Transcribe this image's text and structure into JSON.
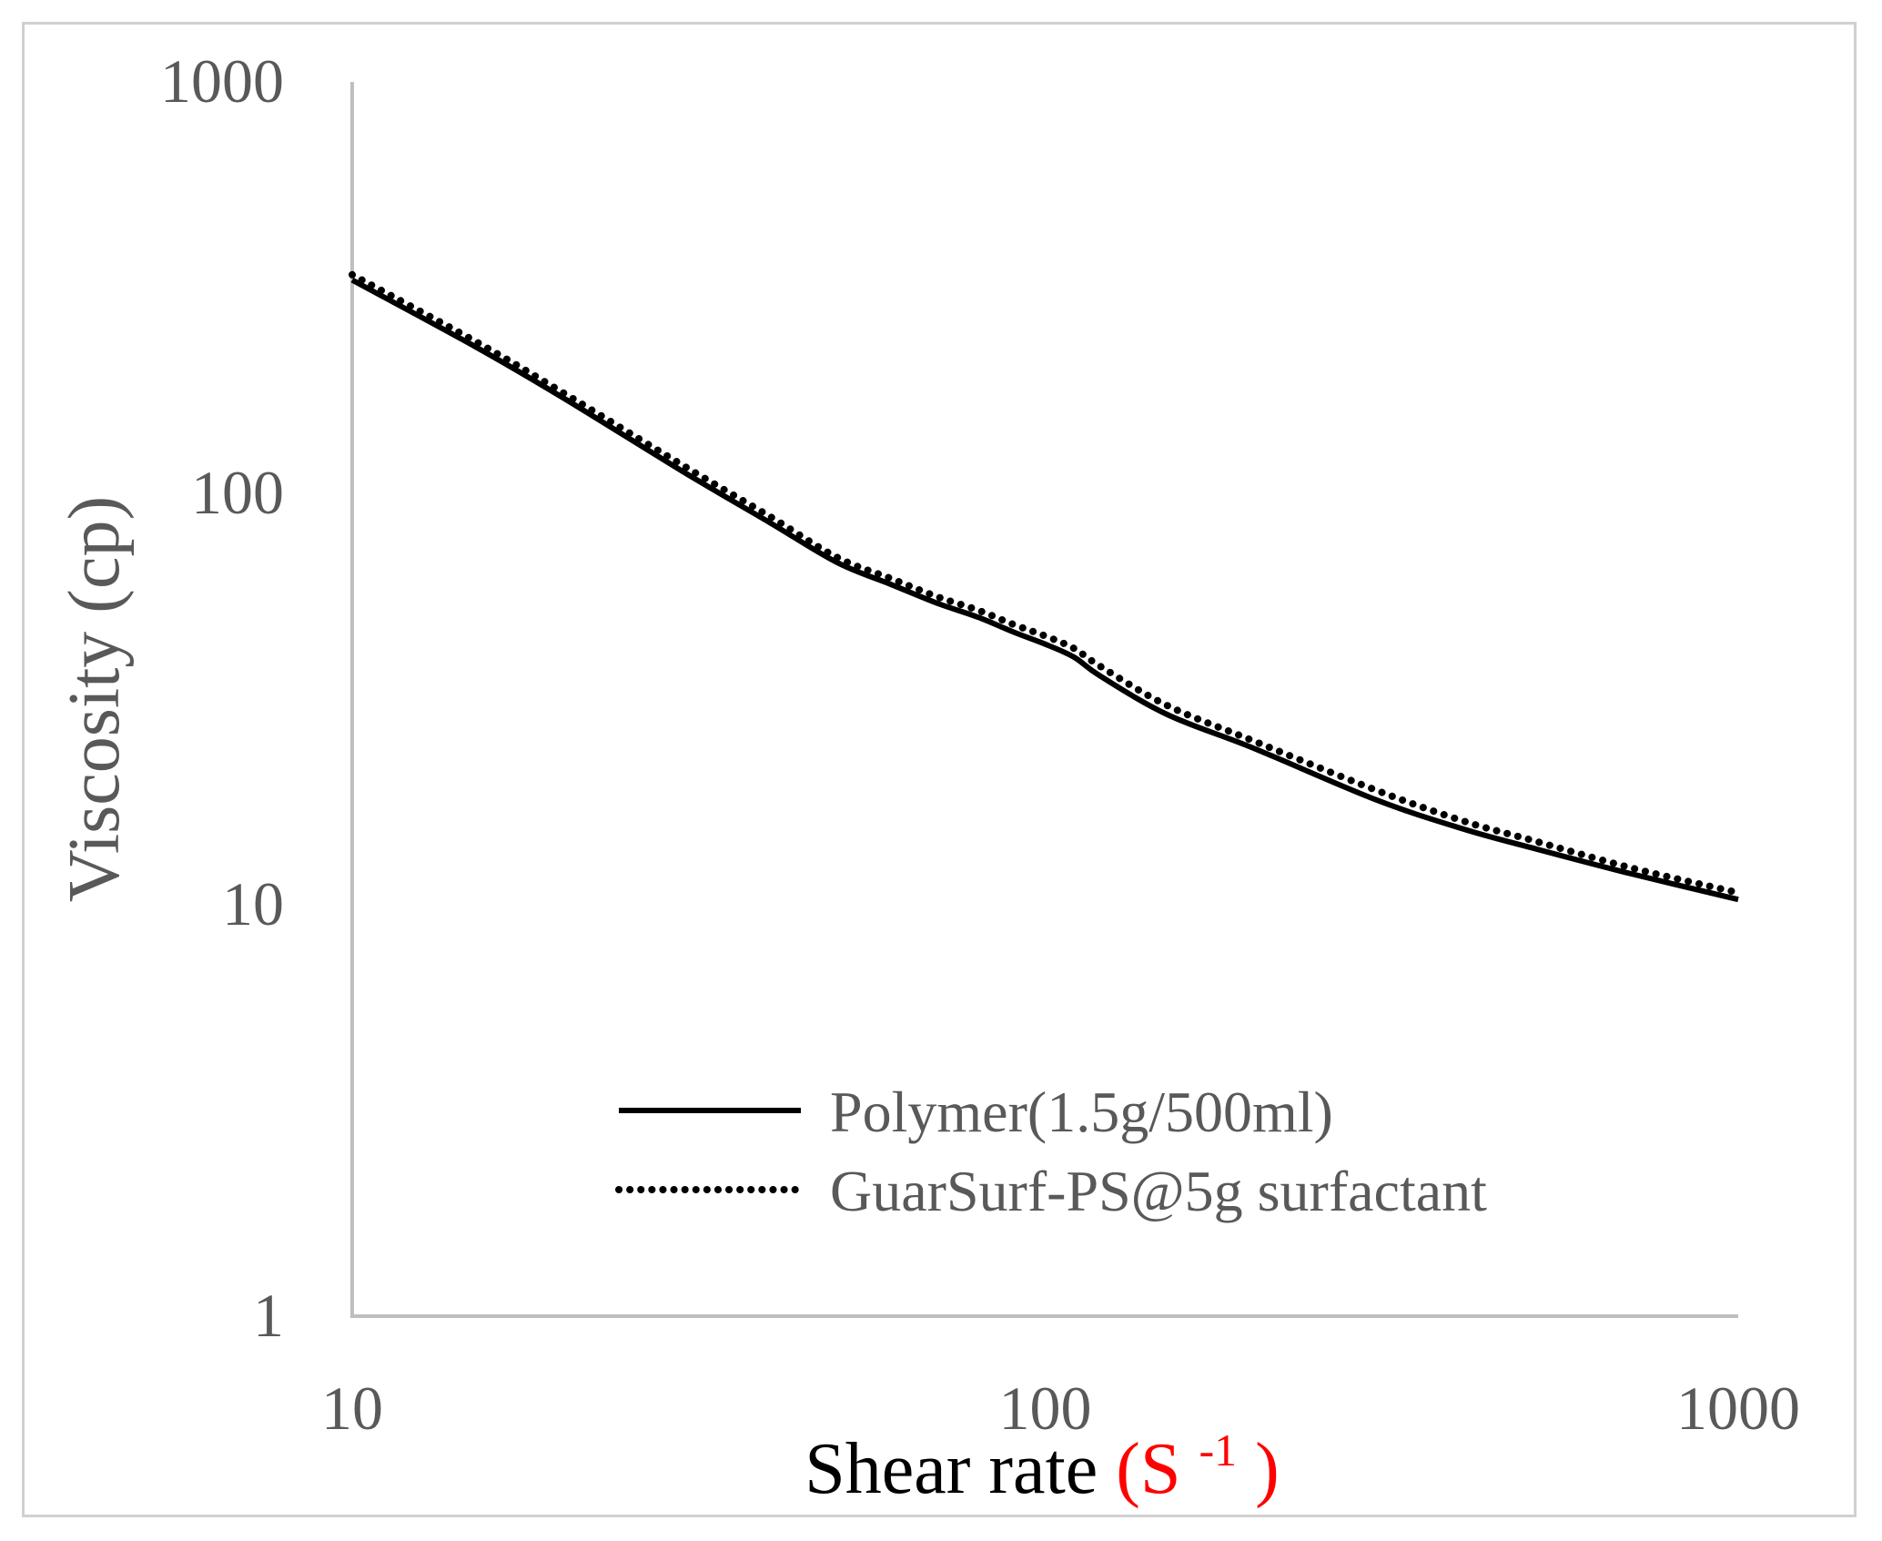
{
  "chart_data": {
    "type": "line",
    "title": "",
    "xscale": "log",
    "yscale": "log",
    "xlim": [
      10,
      1000
    ],
    "ylim": [
      1,
      1000
    ],
    "xticks": [
      "10",
      "100",
      "1000"
    ],
    "yticks": [
      "1",
      "10",
      "100",
      "1000"
    ],
    "xlabel": {
      "text": "Shear rate ",
      "unit": "(S",
      "sup": "-1",
      "close": ")"
    },
    "ylabel": "Viscosity (cp)",
    "legend_position": "bottom-center",
    "series": [
      {
        "name": "Polymer(1.5g/500ml)",
        "style": "solid",
        "color": "#000000",
        "x": [
          10,
          15,
          20,
          30,
          40,
          50,
          60,
          70,
          80,
          90,
          100,
          110,
          120,
          150,
          200,
          300,
          400,
          500,
          700,
          1000
        ],
        "y": [
          330,
          228,
          172,
          113,
          85,
          68,
          60,
          54,
          50,
          46,
          43,
          40,
          36,
          29,
          24,
          18,
          15.3,
          13.8,
          11.9,
          10.3
        ]
      },
      {
        "name": "GuarSurf-PS@5g surfactant",
        "style": "dotted",
        "color": "#000000",
        "x": [
          10,
          15,
          20,
          30,
          40,
          50,
          60,
          70,
          80,
          90,
          100,
          110,
          120,
          150,
          200,
          300,
          400,
          500,
          700,
          1000
        ],
        "y": [
          340,
          235,
          177,
          117,
          88,
          70,
          62,
          56,
          52,
          48,
          45,
          42,
          38,
          30.5,
          25,
          19,
          16,
          14.4,
          12.3,
          10.7
        ]
      }
    ],
    "colors": {
      "axis": "#bfbfbf",
      "tick_text": "#595959",
      "xlabel_text": "#000000",
      "xlabel_unit": "#ff0000",
      "ylabel_text": "#595959"
    }
  }
}
